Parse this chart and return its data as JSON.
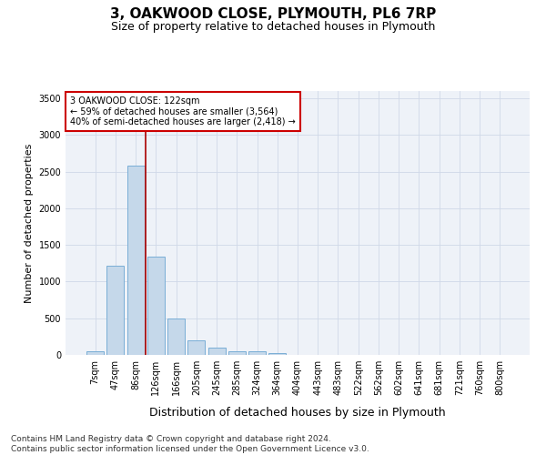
{
  "title1": "3, OAKWOOD CLOSE, PLYMOUTH, PL6 7RP",
  "title2": "Size of property relative to detached houses in Plymouth",
  "xlabel": "Distribution of detached houses by size in Plymouth",
  "ylabel": "Number of detached properties",
  "categories": [
    "7sqm",
    "47sqm",
    "86sqm",
    "126sqm",
    "166sqm",
    "205sqm",
    "245sqm",
    "285sqm",
    "324sqm",
    "364sqm",
    "404sqm",
    "443sqm",
    "483sqm",
    "522sqm",
    "562sqm",
    "602sqm",
    "641sqm",
    "681sqm",
    "721sqm",
    "760sqm",
    "800sqm"
  ],
  "bar_values": [
    50,
    1220,
    2580,
    1340,
    500,
    195,
    105,
    45,
    45,
    30,
    0,
    0,
    0,
    0,
    0,
    0,
    0,
    0,
    0,
    0,
    0
  ],
  "bar_color": "#c5d8ea",
  "bar_edge_color": "#7aaed6",
  "grid_color": "#d0d8e8",
  "background_color": "#eef2f8",
  "vline_x_index": 2.5,
  "vline_color": "#aa0000",
  "annotation_text": "3 OAKWOOD CLOSE: 122sqm\n← 59% of detached houses are smaller (3,564)\n40% of semi-detached houses are larger (2,418) →",
  "annotation_box_color": "#ffffff",
  "annotation_box_edge": "#cc0000",
  "ylim": [
    0,
    3600
  ],
  "yticks": [
    0,
    500,
    1000,
    1500,
    2000,
    2500,
    3000,
    3500
  ],
  "footer_line1": "Contains HM Land Registry data © Crown copyright and database right 2024.",
  "footer_line2": "Contains public sector information licensed under the Open Government Licence v3.0.",
  "title1_fontsize": 11,
  "title2_fontsize": 9,
  "xlabel_fontsize": 9,
  "ylabel_fontsize": 8,
  "tick_fontsize": 7,
  "footer_fontsize": 6.5
}
